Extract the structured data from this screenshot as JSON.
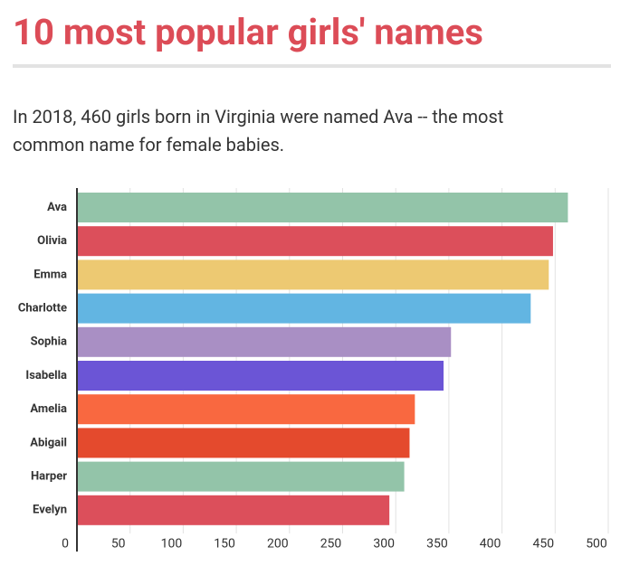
{
  "chart_data": {
    "type": "bar",
    "orientation": "horizontal",
    "title": "10 most popular girls' names",
    "subtitle": "In 2018, 460 girls born in Virginia were named Ava -- the most common name for female babies.",
    "categories": [
      "Ava",
      "Olivia",
      "Emma",
      "Charlotte",
      "Sophia",
      "Isabella",
      "Amelia",
      "Abigail",
      "Harper",
      "Evelyn"
    ],
    "values": [
      462,
      448,
      444,
      427,
      352,
      345,
      318,
      313,
      308,
      294
    ],
    "colors": [
      "#93c4a9",
      "#dc4f5b",
      "#edc972",
      "#62b5e2",
      "#a98fc4",
      "#6b55d6",
      "#f96840",
      "#e44a2d",
      "#93c4a9",
      "#dc4f5b"
    ],
    "xlim": [
      0,
      500
    ],
    "xticks": [
      0,
      50,
      100,
      150,
      200,
      250,
      300,
      350,
      400,
      450,
      500
    ],
    "grid": true
  }
}
